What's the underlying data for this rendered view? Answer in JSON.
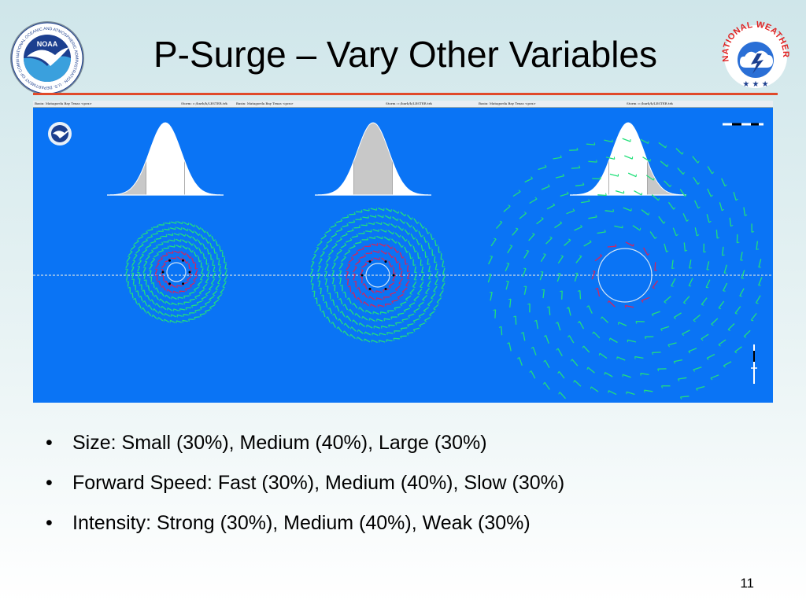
{
  "slide": {
    "title": "P-Surge – Vary Other Variables",
    "page_number": "11",
    "bullets": [
      "Size: Small (30%), Medium (40%), Large (30%)",
      "Forward Speed: Fast (30%), Medium (40%), Slow (30%)",
      "Intensity: Strong (30%), Medium (40%), Weak (30%)"
    ]
  },
  "logos": {
    "noaa": {
      "center_text": "NOAA",
      "ring_text": "NATIONAL OCEANIC AND ATMOSPHERIC ADMINISTRATION · U.S. DEPARTMENT OF COMMERCE"
    },
    "nws": {
      "ring_text": "NATIONAL WEATHER SERVICE"
    }
  },
  "figure": {
    "header_labels": [
      "Basin: Matagorda Bay Texas <pcx>",
      "Storm: c:/barb/h/LESTER.trk",
      "Basin: Matagorda Bay Texas <pcx>",
      "Storm: c:/barb/h/LESTER.trk",
      "Basin: Matagorda Bay Texas <pcx>",
      "Storm: c:/barb/h/LESTER.trk"
    ],
    "panels": [
      {
        "shaded_portion": "left",
        "storm_extent": "small"
      },
      {
        "shaded_portion": "middle",
        "storm_extent": "medium"
      },
      {
        "shaded_portion": "right",
        "storm_extent": "large"
      }
    ]
  },
  "colors": {
    "background_top": "#cfe6ea",
    "title_rule": "#e04a2a",
    "plot_background": "#0a74f5",
    "outer_winds": "#22e07a",
    "inner_winds": "#d8245a",
    "distribution_fill": "#c8c8c8"
  }
}
